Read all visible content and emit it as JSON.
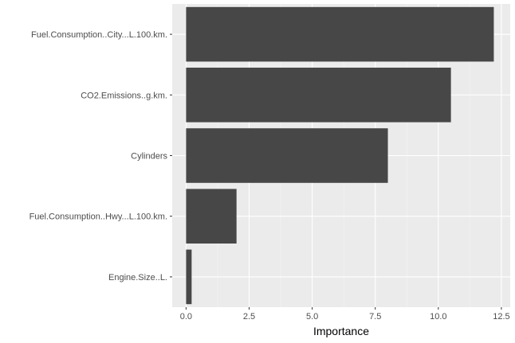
{
  "chart_data": {
    "type": "bar",
    "orientation": "horizontal",
    "title": "",
    "xlabel": "Importance",
    "ylabel": "",
    "categories": [
      "Fuel.Consumption..City...L.100.km.",
      "CO2.Emissions..g.km.",
      "Cylinders",
      "Fuel.Consumption..Hwy...L.100.km.",
      "Engine.Size..L."
    ],
    "values": [
      12.2,
      10.5,
      8.0,
      2.0,
      0.22
    ],
    "xlim": [
      -0.55,
      12.85
    ],
    "x_ticks": [
      0.0,
      2.5,
      5.0,
      7.5,
      10.0,
      12.5
    ],
    "x_tick_labels": [
      "0.0",
      "2.5",
      "5.0",
      "7.5",
      "10.0",
      "12.5"
    ],
    "grid": true,
    "legend": "none",
    "colors": {
      "bar": "#474747",
      "panel_background": "#ebebeb",
      "grid_major": "#ffffff",
      "grid_minor": "#f4f4f4"
    }
  }
}
